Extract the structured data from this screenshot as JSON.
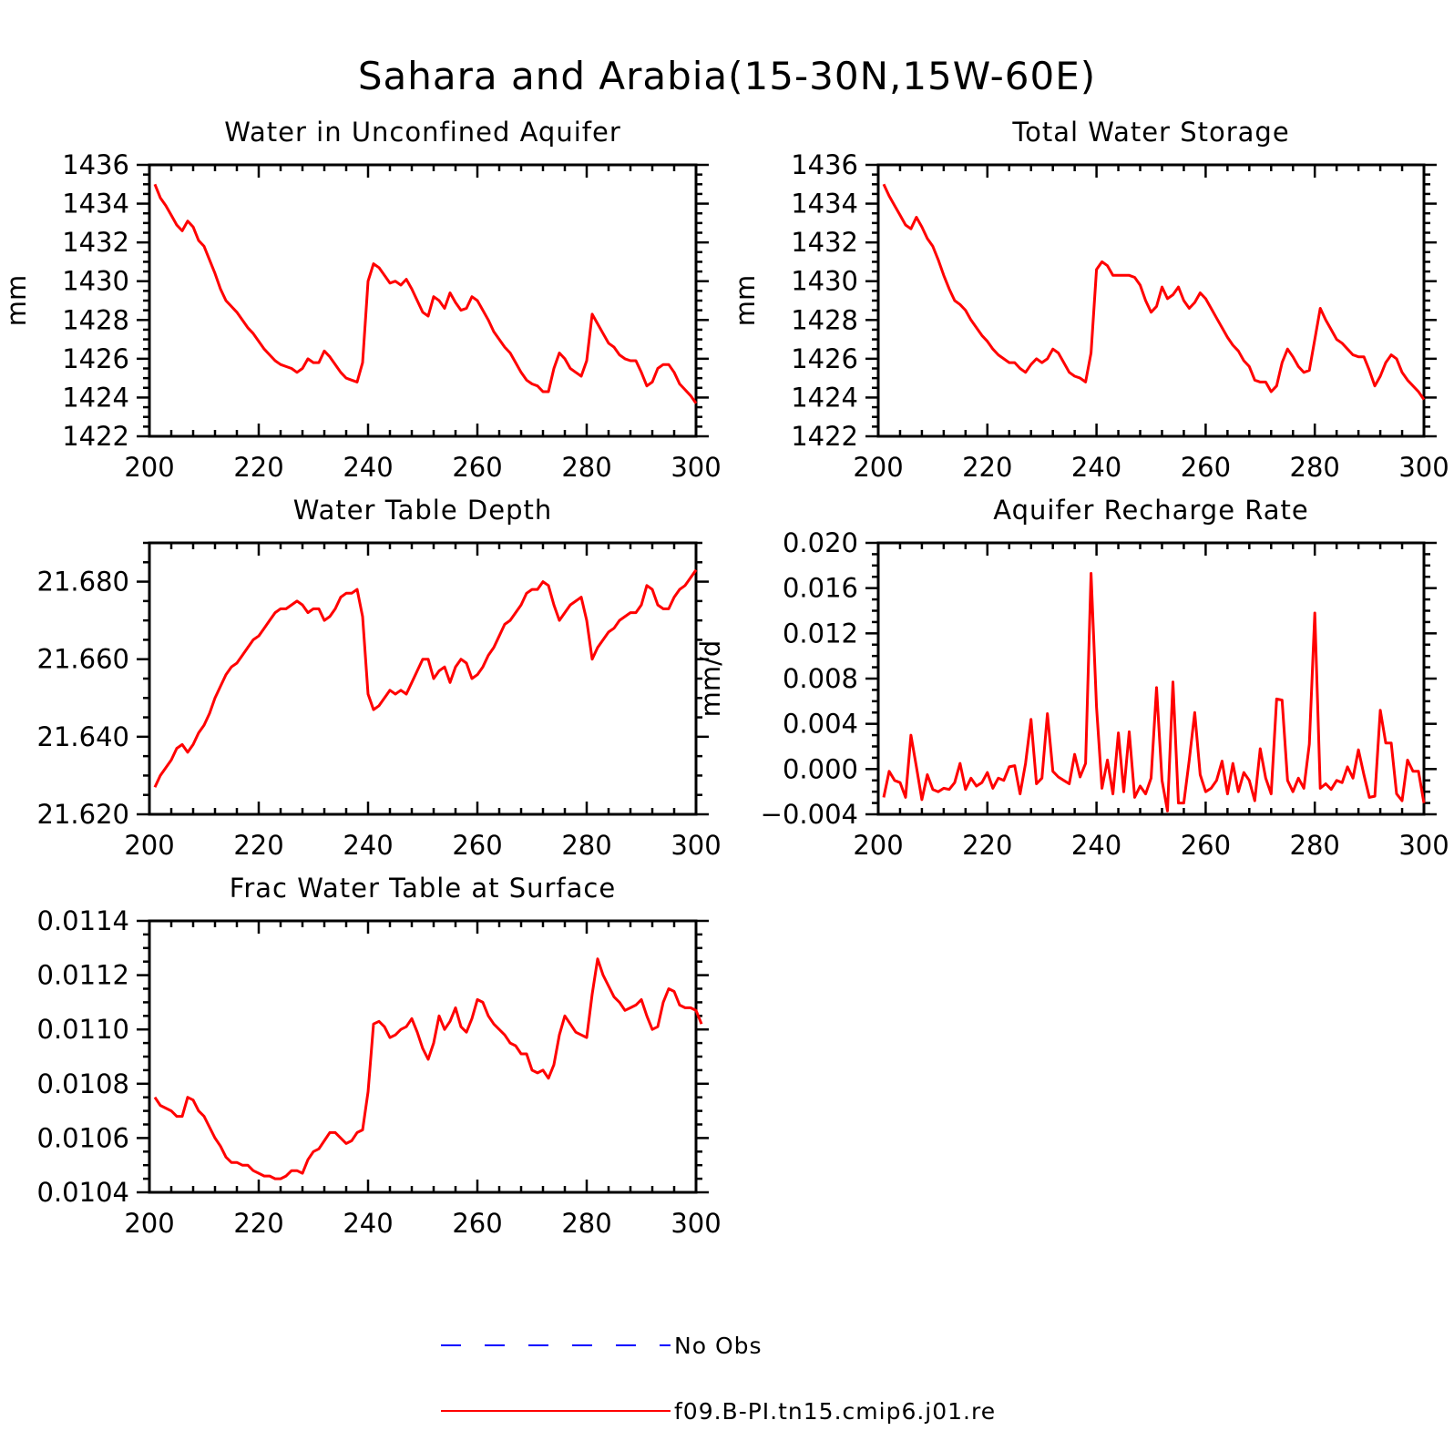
{
  "figure": {
    "title": "Sahara and Arabia(15-30N,15W-60E)"
  },
  "colors": {
    "model": "#ff0000",
    "obs": "#0000ff",
    "axes": "#000000"
  },
  "legend": {
    "entries": [
      {
        "label": "No Obs",
        "style": "dashed",
        "color": "#0000ff"
      },
      {
        "label": "f09.B-PI.tn15.cmip6.j01.re",
        "style": "solid",
        "color": "#ff0000"
      }
    ]
  },
  "chart_data": [
    {
      "type": "line",
      "title": "Water in Unconfined Aquifer",
      "ylabel": "mm",
      "xlim": [
        200,
        300
      ],
      "ylim": [
        1422,
        1436
      ],
      "x_ticks": [
        "200",
        "220",
        "240",
        "260",
        "280",
        "300"
      ],
      "y_ticks": [
        "1422",
        "1424",
        "1426",
        "1428",
        "1430",
        "1432",
        "1434",
        "1436"
      ],
      "x_start": 201,
      "series": [
        {
          "values": [
            1435.0,
            1434.3,
            1433.9,
            1433.4,
            1432.9,
            1432.6,
            1433.1,
            1432.8,
            1432.1,
            1431.8,
            1431.1,
            1430.4,
            1429.6,
            1429.0,
            1428.7,
            1428.4,
            1428.0,
            1427.6,
            1427.3,
            1426.9,
            1426.5,
            1426.2,
            1425.9,
            1425.7,
            1425.6,
            1425.5,
            1425.3,
            1425.5,
            1426.0,
            1425.8,
            1425.8,
            1426.4,
            1426.1,
            1425.7,
            1425.3,
            1425.0,
            1424.9,
            1424.8,
            1425.8,
            1430.0,
            1430.9,
            1430.7,
            1430.3,
            1429.9,
            1430.0,
            1429.8,
            1430.1,
            1429.6,
            1429.0,
            1428.4,
            1428.2,
            1429.2,
            1429.0,
            1428.6,
            1429.4,
            1428.9,
            1428.5,
            1428.6,
            1429.2,
            1429.0,
            1428.5,
            1428.0,
            1427.4,
            1427.0,
            1426.6,
            1426.3,
            1425.8,
            1425.3,
            1424.9,
            1424.7,
            1424.6,
            1424.3,
            1424.3,
            1425.5,
            1426.3,
            1426.0,
            1425.5,
            1425.3,
            1425.1,
            1425.9,
            1428.3,
            1427.8,
            1427.3,
            1426.8,
            1426.6,
            1426.2,
            1426.0,
            1425.9,
            1425.9,
            1425.3,
            1424.6,
            1424.8,
            1425.5,
            1425.7,
            1425.7,
            1425.3,
            1424.7,
            1424.4,
            1424.1,
            1423.7
          ]
        }
      ]
    },
    {
      "type": "line",
      "title": "Total Water Storage",
      "ylabel": "mm",
      "xlim": [
        200,
        300
      ],
      "ylim": [
        1422,
        1436
      ],
      "x_ticks": [
        "200",
        "220",
        "240",
        "260",
        "280",
        "300"
      ],
      "y_ticks": [
        "1422",
        "1424",
        "1426",
        "1428",
        "1430",
        "1432",
        "1434",
        "1436"
      ],
      "x_start": 201,
      "series": [
        {
          "values": [
            1435.0,
            1434.4,
            1433.9,
            1433.4,
            1432.9,
            1432.7,
            1433.3,
            1432.8,
            1432.2,
            1431.8,
            1431.1,
            1430.3,
            1429.6,
            1429.0,
            1428.8,
            1428.5,
            1428.0,
            1427.6,
            1427.2,
            1426.9,
            1426.5,
            1426.2,
            1426.0,
            1425.8,
            1425.8,
            1425.5,
            1425.3,
            1425.7,
            1426.0,
            1425.8,
            1426.0,
            1426.5,
            1426.3,
            1425.8,
            1425.3,
            1425.1,
            1425.0,
            1424.8,
            1426.3,
            1430.6,
            1431.0,
            1430.8,
            1430.3,
            1430.3,
            1430.3,
            1430.3,
            1430.2,
            1429.8,
            1429.0,
            1428.4,
            1428.7,
            1429.7,
            1429.1,
            1429.3,
            1429.7,
            1429.0,
            1428.6,
            1428.9,
            1429.4,
            1429.1,
            1428.6,
            1428.1,
            1427.6,
            1427.1,
            1426.7,
            1426.4,
            1425.9,
            1425.6,
            1424.9,
            1424.8,
            1424.8,
            1424.3,
            1424.6,
            1425.8,
            1426.5,
            1426.1,
            1425.6,
            1425.3,
            1425.4,
            1427.0,
            1428.6,
            1428.0,
            1427.5,
            1427.0,
            1426.8,
            1426.5,
            1426.2,
            1426.1,
            1426.1,
            1425.4,
            1424.6,
            1425.1,
            1425.8,
            1426.2,
            1426.0,
            1425.3,
            1424.9,
            1424.6,
            1424.3,
            1423.9
          ]
        }
      ]
    },
    {
      "type": "line",
      "title": "Water Table Depth",
      "ylabel": "",
      "xlim": [
        200,
        300
      ],
      "ylim": [
        21.62,
        21.69
      ],
      "x_ticks": [
        "200",
        "220",
        "240",
        "260",
        "280",
        "300"
      ],
      "y_ticks": [
        "21.620",
        "21.640",
        "21.660",
        "21.680"
      ],
      "x_start": 201,
      "series": [
        {
          "values": [
            21.627,
            21.63,
            21.632,
            21.634,
            21.637,
            21.638,
            21.636,
            21.638,
            21.641,
            21.643,
            21.646,
            21.65,
            21.653,
            21.656,
            21.658,
            21.659,
            21.661,
            21.663,
            21.665,
            21.666,
            21.668,
            21.67,
            21.672,
            21.673,
            21.673,
            21.674,
            21.675,
            21.674,
            21.672,
            21.673,
            21.673,
            21.67,
            21.671,
            21.673,
            21.676,
            21.677,
            21.677,
            21.678,
            21.671,
            21.651,
            21.647,
            21.648,
            21.65,
            21.652,
            21.651,
            21.652,
            21.651,
            21.654,
            21.657,
            21.66,
            21.66,
            21.655,
            21.657,
            21.658,
            21.654,
            21.658,
            21.66,
            21.659,
            21.655,
            21.656,
            21.658,
            21.661,
            21.663,
            21.666,
            21.669,
            21.67,
            21.672,
            21.674,
            21.677,
            21.678,
            21.678,
            21.68,
            21.679,
            21.674,
            21.67,
            21.672,
            21.674,
            21.675,
            21.676,
            21.67,
            21.66,
            21.663,
            21.665,
            21.667,
            21.668,
            21.67,
            21.671,
            21.672,
            21.672,
            21.674,
            21.679,
            21.678,
            21.674,
            21.673,
            21.673,
            21.676,
            21.678,
            21.679,
            21.681,
            21.683
          ]
        }
      ]
    },
    {
      "type": "line",
      "title": "Aquifer Recharge Rate",
      "ylabel": "mm/d",
      "xlim": [
        200,
        300
      ],
      "ylim": [
        -0.004,
        0.02
      ],
      "x_ticks": [
        "200",
        "220",
        "240",
        "260",
        "280",
        "300"
      ],
      "y_ticks": [
        "-0.004",
        "0.000",
        "0.004",
        "0.008",
        "0.012",
        "0.016",
        "0.020"
      ],
      "x_start": 201,
      "series": [
        {
          "values": [
            -0.0025,
            -0.0002,
            -0.001,
            -0.0012,
            -0.0025,
            0.003,
            0.0002,
            -0.0027,
            -0.0005,
            -0.0018,
            -0.002,
            -0.0017,
            -0.0018,
            -0.0012,
            0.0005,
            -0.0018,
            -0.0008,
            -0.0015,
            -0.0012,
            -0.0003,
            -0.0017,
            -0.0008,
            -0.001,
            0.0002,
            0.0003,
            -0.0022,
            0.0005,
            0.0044,
            -0.0013,
            -0.0008,
            0.0049,
            -0.0002,
            -0.0007,
            -0.001,
            -0.0013,
            0.0013,
            -0.0007,
            0.0005,
            0.0173,
            0.0055,
            -0.0017,
            0.0008,
            -0.0022,
            0.0032,
            -0.002,
            0.0033,
            -0.0025,
            -0.0015,
            -0.0022,
            -0.0008,
            0.0072,
            -0.001,
            -0.0037,
            0.0077,
            -0.003,
            -0.003,
            0.0008,
            0.005,
            -0.0005,
            -0.002,
            -0.0017,
            -0.001,
            0.0007,
            -0.0022,
            0.0005,
            -0.002,
            -0.0003,
            -0.001,
            -0.0028,
            0.0018,
            -0.0008,
            -0.0022,
            0.0062,
            0.0061,
            -0.001,
            -0.002,
            -0.0008,
            -0.0017,
            0.0022,
            0.0138,
            -0.0017,
            -0.0013,
            -0.0018,
            -0.001,
            -0.0012,
            0.0002,
            -0.0008,
            0.0017,
            -0.0005,
            -0.0025,
            -0.0024,
            0.0052,
            0.0023,
            0.0023,
            -0.0022,
            -0.0028,
            0.0008,
            -0.0002,
            -0.0002,
            -0.003
          ]
        }
      ]
    },
    {
      "type": "line",
      "title": "Frac Water Table at Surface",
      "ylabel": "",
      "xlim": [
        200,
        300
      ],
      "ylim": [
        0.0104,
        0.0114
      ],
      "x_ticks": [
        "200",
        "220",
        "240",
        "260",
        "280",
        "300"
      ],
      "y_ticks": [
        "0.0104",
        "0.0106",
        "0.0108",
        "0.0110",
        "0.0112",
        "0.0114"
      ],
      "x_start": 201,
      "series": [
        {
          "values": [
            0.01075,
            0.01072,
            0.01071,
            0.0107,
            0.01068,
            0.01068,
            0.01075,
            0.01074,
            0.0107,
            0.01068,
            0.01064,
            0.0106,
            0.01057,
            0.01053,
            0.01051,
            0.01051,
            0.0105,
            0.0105,
            0.01048,
            0.01047,
            0.01046,
            0.01046,
            0.01045,
            0.01045,
            0.01046,
            0.01048,
            0.01048,
            0.01047,
            0.01052,
            0.01055,
            0.01056,
            0.01059,
            0.01062,
            0.01062,
            0.0106,
            0.01058,
            0.01059,
            0.01062,
            0.01063,
            0.01077,
            0.01102,
            0.01103,
            0.01101,
            0.01097,
            0.01098,
            0.011,
            0.01101,
            0.01104,
            0.01099,
            0.01093,
            0.01089,
            0.01095,
            0.01105,
            0.011,
            0.01103,
            0.01108,
            0.01101,
            0.01099,
            0.01104,
            0.01111,
            0.0111,
            0.01105,
            0.01102,
            0.011,
            0.01098,
            0.01095,
            0.01094,
            0.01091,
            0.01091,
            0.01085,
            0.01084,
            0.01085,
            0.01082,
            0.01087,
            0.01098,
            0.01105,
            0.01102,
            0.01099,
            0.01098,
            0.01097,
            0.01113,
            0.01126,
            0.0112,
            0.01116,
            0.01112,
            0.0111,
            0.01107,
            0.01108,
            0.01109,
            0.01111,
            0.01105,
            0.011,
            0.01101,
            0.0111,
            0.01115,
            0.01114,
            0.01109,
            0.01108,
            0.01108,
            0.01107,
            0.01102
          ]
        }
      ]
    }
  ]
}
